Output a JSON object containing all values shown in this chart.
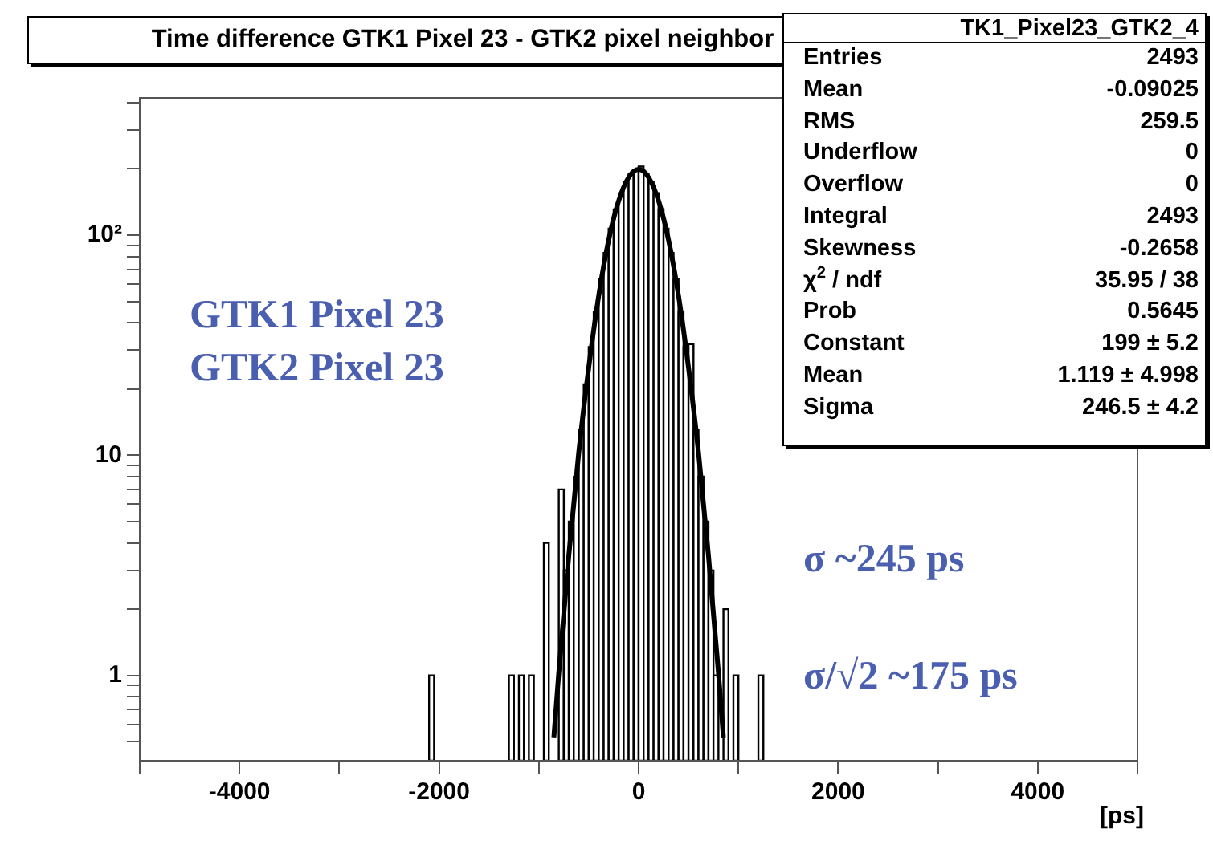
{
  "chart_data": {
    "type": "histogram",
    "title": "Time difference GTK1 Pixel 23 - GTK2 pixel neighbor",
    "xlabel": "[ps]",
    "bins": [
      -2100,
      -2050,
      -1300,
      -1250,
      -1200,
      -1150,
      -1100,
      -1050,
      -950,
      -900,
      -800,
      -750,
      -700,
      -650,
      -600,
      -550,
      -500,
      -450,
      -400,
      -350,
      -300,
      -250,
      -200,
      -150,
      -100,
      -50,
      0,
      50,
      100,
      150,
      200,
      250,
      300,
      350,
      400,
      450,
      500,
      550,
      600,
      650,
      700,
      750,
      800,
      850,
      900,
      950,
      1000,
      1200,
      1250
    ],
    "values": [
      1,
      null,
      1,
      null,
      1,
      null,
      1,
      null,
      4,
      null,
      7,
      3,
      5,
      8,
      13,
      21,
      31,
      45,
      63,
      83,
      107,
      131,
      155,
      175,
      190,
      198,
      205,
      190,
      175,
      155,
      131,
      107,
      83,
      63,
      45,
      31,
      32,
      13,
      8,
      5,
      3,
      1,
      null,
      2,
      null,
      1,
      null,
      1
    ],
    "color": "#000000",
    "series": [
      {
        "type": "line",
        "color": "#000000",
        "x": [
          -850,
          -800,
          -700,
          -600,
          -500,
          -400,
          -300,
          -200,
          -100,
          0,
          100,
          200,
          300,
          400,
          500,
          600,
          700,
          800,
          850
        ],
        "values": [
          0.52,
          1.03,
          3.5,
          10.3,
          25,
          53,
          95,
          143,
          183,
          199,
          183,
          143,
          95,
          53,
          25,
          10.3,
          3.5,
          1.03,
          0.52
        ]
      }
    ],
    "xlim": [
      -5000,
      5000
    ],
    "xticks": [
      {
        "value": -5000,
        "label": null
      },
      -4000,
      {
        "value": -3000,
        "label": null
      },
      -2000,
      {
        "value": -1000,
        "label": null
      },
      0,
      {
        "value": 1000,
        "label": null
      },
      2000,
      {
        "value": 3000,
        "label": null
      },
      4000,
      {
        "value": 5000,
        "label": null
      }
    ],
    "ylim": [
      0.41,
      420
    ],
    "yticks": [
      {
        "value": 0.5,
        "label": null
      },
      {
        "value": 0.6,
        "label": null
      },
      {
        "value": 0.7,
        "label": null
      },
      {
        "value": 0.8,
        "label": null
      },
      {
        "value": 0.9,
        "label": null
      },
      1,
      {
        "value": 2,
        "label": null
      },
      {
        "value": 3,
        "label": null
      },
      {
        "value": 4,
        "label": null
      },
      {
        "value": 5,
        "label": null
      },
      {
        "value": 6,
        "label": null
      },
      {
        "value": 7,
        "label": null
      },
      {
        "value": 8,
        "label": null
      },
      {
        "value": 9,
        "label": null
      },
      10,
      {
        "value": 20,
        "label": null
      },
      {
        "value": 30,
        "label": null
      },
      {
        "value": 40,
        "label": null
      },
      {
        "value": 50,
        "label": null
      },
      {
        "value": 60,
        "label": null
      },
      {
        "value": 70,
        "label": null
      },
      {
        "value": 80,
        "label": null
      },
      {
        "value": 90,
        "label": null
      },
      {
        "value": 100,
        "label": "10²"
      },
      {
        "value": 200,
        "label": null
      },
      {
        "value": 300,
        "label": null
      },
      {
        "value": 400,
        "label": null
      }
    ],
    "log": "y",
    "legend": false,
    "grid": false,
    "annotations": [
      "TK1_Pixel23_GTK2_4",
      "Entries 2493",
      "Mean -0.09025",
      "RMS 259.5",
      "Underflow 0",
      "Overflow 0",
      "Integral 2493",
      "Skewness -0.2658",
      "χ$^{2}$ / ndf 35.95 / 38",
      "Prob 0.5645",
      "Constant 199 ± 5.2",
      "Mean 1.119 ± 4.998",
      "Sigma 246.5 ± 4.2",
      "GTK1 Pixel 23",
      "GTK2 Pixel 23",
      "σ ~245 ps",
      "σ/√2 ~175 ps"
    ]
  }
}
